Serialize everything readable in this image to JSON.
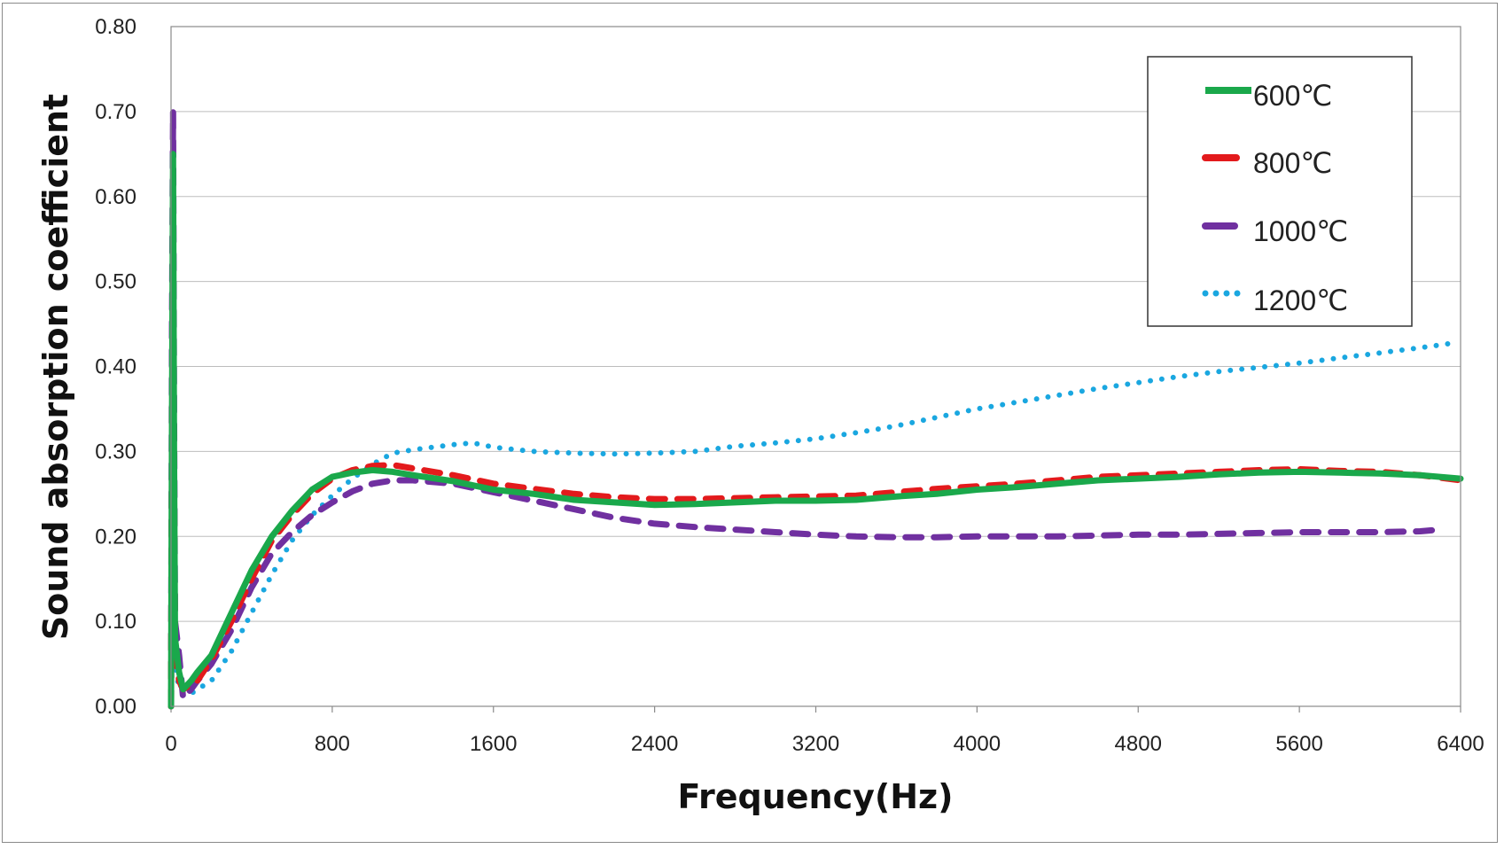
{
  "chart_data": {
    "type": "line",
    "title": "",
    "xlabel": "Frequency(Hz)",
    "ylabel": "Sound absorption coefficient",
    "xlim": [
      0,
      6400
    ],
    "ylim": [
      0,
      0.8
    ],
    "x_ticks": [
      "0",
      "800",
      "1600",
      "2400",
      "3200",
      "4000",
      "4800",
      "5600",
      "6400"
    ],
    "y_ticks": [
      "0.00",
      "0.10",
      "0.20",
      "0.30",
      "0.40",
      "0.50",
      "0.60",
      "0.70",
      "0.80"
    ],
    "grid": "horizontal",
    "legend_position": "top-right",
    "series": [
      {
        "name": "600℃",
        "color": "#1aa84b",
        "style": "solid",
        "points": [
          [
            0,
            0.0
          ],
          [
            5,
            0.35
          ],
          [
            10,
            0.65
          ],
          [
            15,
            0.3
          ],
          [
            20,
            0.08
          ],
          [
            40,
            0.04
          ],
          [
            60,
            0.02
          ],
          [
            100,
            0.03
          ],
          [
            130,
            0.04
          ],
          [
            200,
            0.06
          ],
          [
            300,
            0.11
          ],
          [
            400,
            0.16
          ],
          [
            500,
            0.2
          ],
          [
            600,
            0.23
          ],
          [
            700,
            0.255
          ],
          [
            800,
            0.27
          ],
          [
            900,
            0.275
          ],
          [
            1000,
            0.278
          ],
          [
            1100,
            0.276
          ],
          [
            1200,
            0.272
          ],
          [
            1400,
            0.265
          ],
          [
            1600,
            0.255
          ],
          [
            1800,
            0.25
          ],
          [
            2000,
            0.243
          ],
          [
            2200,
            0.24
          ],
          [
            2400,
            0.237
          ],
          [
            2600,
            0.238
          ],
          [
            2800,
            0.24
          ],
          [
            3000,
            0.242
          ],
          [
            3200,
            0.242
          ],
          [
            3400,
            0.243
          ],
          [
            3600,
            0.247
          ],
          [
            3800,
            0.25
          ],
          [
            4000,
            0.255
          ],
          [
            4200,
            0.258
          ],
          [
            4400,
            0.262
          ],
          [
            4600,
            0.266
          ],
          [
            4800,
            0.268
          ],
          [
            5000,
            0.27
          ],
          [
            5200,
            0.273
          ],
          [
            5400,
            0.275
          ],
          [
            5600,
            0.276
          ],
          [
            5800,
            0.275
          ],
          [
            6000,
            0.274
          ],
          [
            6200,
            0.272
          ],
          [
            6400,
            0.268
          ]
        ]
      },
      {
        "name": "800℃",
        "color": "#e31a1c",
        "style": "dashed",
        "points": [
          [
            0,
            0.0
          ],
          [
            5,
            0.3
          ],
          [
            10,
            0.5
          ],
          [
            15,
            0.25
          ],
          [
            20,
            0.06
          ],
          [
            40,
            0.03
          ],
          [
            60,
            0.02
          ],
          [
            100,
            0.025
          ],
          [
            130,
            0.03
          ],
          [
            200,
            0.055
          ],
          [
            300,
            0.1
          ],
          [
            400,
            0.15
          ],
          [
            500,
            0.195
          ],
          [
            600,
            0.225
          ],
          [
            700,
            0.25
          ],
          [
            800,
            0.268
          ],
          [
            900,
            0.278
          ],
          [
            1000,
            0.283
          ],
          [
            1100,
            0.284
          ],
          [
            1200,
            0.28
          ],
          [
            1400,
            0.272
          ],
          [
            1600,
            0.262
          ],
          [
            1800,
            0.256
          ],
          [
            2000,
            0.25
          ],
          [
            2200,
            0.246
          ],
          [
            2400,
            0.244
          ],
          [
            2600,
            0.244
          ],
          [
            2800,
            0.245
          ],
          [
            3000,
            0.246
          ],
          [
            3200,
            0.247
          ],
          [
            3400,
            0.248
          ],
          [
            3600,
            0.252
          ],
          [
            3800,
            0.256
          ],
          [
            4000,
            0.259
          ],
          [
            4200,
            0.262
          ],
          [
            4400,
            0.266
          ],
          [
            4600,
            0.27
          ],
          [
            4800,
            0.272
          ],
          [
            5000,
            0.274
          ],
          [
            5200,
            0.276
          ],
          [
            5400,
            0.278
          ],
          [
            5600,
            0.279
          ],
          [
            5800,
            0.277
          ],
          [
            6000,
            0.276
          ],
          [
            6200,
            0.272
          ],
          [
            6400,
            0.266
          ]
        ]
      },
      {
        "name": "1000℃",
        "color": "#7030a0",
        "style": "dashed",
        "points": [
          [
            0,
            0.0
          ],
          [
            5,
            0.45
          ],
          [
            10,
            0.7
          ],
          [
            15,
            0.35
          ],
          [
            20,
            0.1
          ],
          [
            40,
            0.06
          ],
          [
            60,
            0.01
          ],
          [
            100,
            0.02
          ],
          [
            130,
            0.03
          ],
          [
            200,
            0.05
          ],
          [
            300,
            0.09
          ],
          [
            400,
            0.14
          ],
          [
            500,
            0.18
          ],
          [
            600,
            0.205
          ],
          [
            700,
            0.225
          ],
          [
            800,
            0.24
          ],
          [
            900,
            0.253
          ],
          [
            1000,
            0.262
          ],
          [
            1100,
            0.266
          ],
          [
            1200,
            0.266
          ],
          [
            1400,
            0.262
          ],
          [
            1600,
            0.252
          ],
          [
            1800,
            0.242
          ],
          [
            2000,
            0.232
          ],
          [
            2200,
            0.222
          ],
          [
            2400,
            0.215
          ],
          [
            2600,
            0.211
          ],
          [
            2800,
            0.208
          ],
          [
            3000,
            0.205
          ],
          [
            3200,
            0.202
          ],
          [
            3400,
            0.2
          ],
          [
            3600,
            0.199
          ],
          [
            3800,
            0.199
          ],
          [
            4000,
            0.2
          ],
          [
            4200,
            0.2
          ],
          [
            4400,
            0.2
          ],
          [
            4600,
            0.201
          ],
          [
            4800,
            0.202
          ],
          [
            5000,
            0.202
          ],
          [
            5200,
            0.203
          ],
          [
            5400,
            0.204
          ],
          [
            5600,
            0.205
          ],
          [
            5800,
            0.205
          ],
          [
            6000,
            0.205
          ],
          [
            6200,
            0.206
          ],
          [
            6300,
            0.208
          ]
        ]
      },
      {
        "name": "1200℃",
        "color": "#1aa7e0",
        "style": "dotted",
        "points": [
          [
            0,
            0.0
          ],
          [
            5,
            0.25
          ],
          [
            10,
            0.55
          ],
          [
            15,
            0.3
          ],
          [
            20,
            0.05
          ],
          [
            40,
            0.02
          ],
          [
            60,
            0.03
          ],
          [
            100,
            0.015
          ],
          [
            130,
            0.02
          ],
          [
            200,
            0.03
          ],
          [
            300,
            0.065
          ],
          [
            400,
            0.11
          ],
          [
            500,
            0.155
          ],
          [
            600,
            0.195
          ],
          [
            700,
            0.225
          ],
          [
            800,
            0.248
          ],
          [
            900,
            0.268
          ],
          [
            1000,
            0.285
          ],
          [
            1100,
            0.298
          ],
          [
            1200,
            0.302
          ],
          [
            1300,
            0.305
          ],
          [
            1400,
            0.308
          ],
          [
            1500,
            0.31
          ],
          [
            1600,
            0.305
          ],
          [
            1800,
            0.3
          ],
          [
            2000,
            0.298
          ],
          [
            2200,
            0.297
          ],
          [
            2400,
            0.298
          ],
          [
            2600,
            0.3
          ],
          [
            2800,
            0.306
          ],
          [
            3000,
            0.31
          ],
          [
            3200,
            0.315
          ],
          [
            3400,
            0.322
          ],
          [
            3600,
            0.33
          ],
          [
            3800,
            0.34
          ],
          [
            4000,
            0.35
          ],
          [
            4200,
            0.358
          ],
          [
            4400,
            0.366
          ],
          [
            4600,
            0.374
          ],
          [
            4800,
            0.381
          ],
          [
            5000,
            0.388
          ],
          [
            5200,
            0.394
          ],
          [
            5400,
            0.399
          ],
          [
            5600,
            0.404
          ],
          [
            5800,
            0.41
          ],
          [
            6000,
            0.416
          ],
          [
            6200,
            0.422
          ],
          [
            6350,
            0.427
          ]
        ]
      }
    ]
  }
}
